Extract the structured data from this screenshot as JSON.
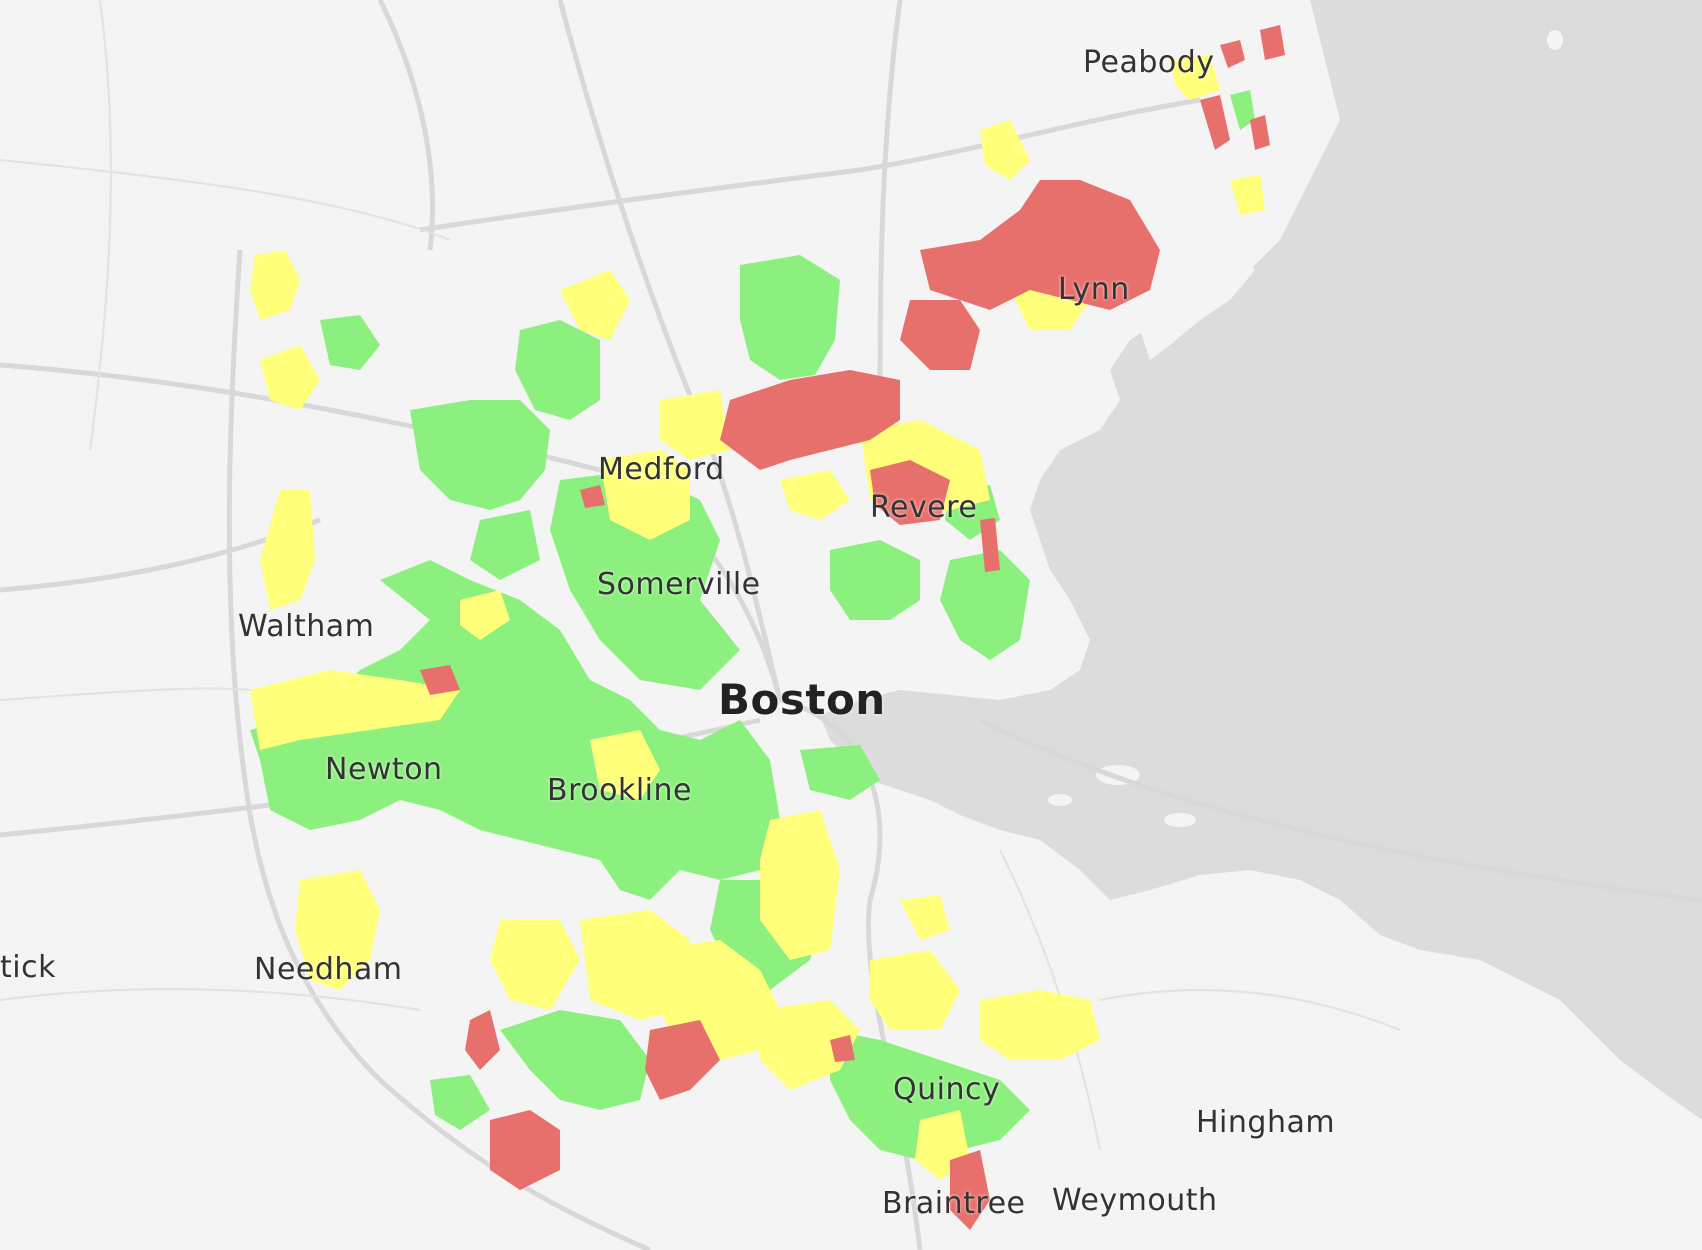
{
  "map": {
    "colors": {
      "land": "#f4f4f4",
      "water": "#dcdcdc",
      "road": "#d6d6d6",
      "high": "#e8706c",
      "medium": "#ffff7a",
      "low": "#8cf07e"
    },
    "labels": {
      "peabody": "Peabody",
      "lynn": "Lynn",
      "medford": "Medford",
      "revere": "Revere",
      "somerville": "Somerville",
      "waltham": "Waltham",
      "boston": "Boston",
      "newton": "Newton",
      "brookline": "Brookline",
      "natick": "tick",
      "needham": "Needham",
      "quincy": "Quincy",
      "hingham": "Hingham",
      "braintree": "Braintree",
      "weymouth": "Weymouth"
    }
  }
}
